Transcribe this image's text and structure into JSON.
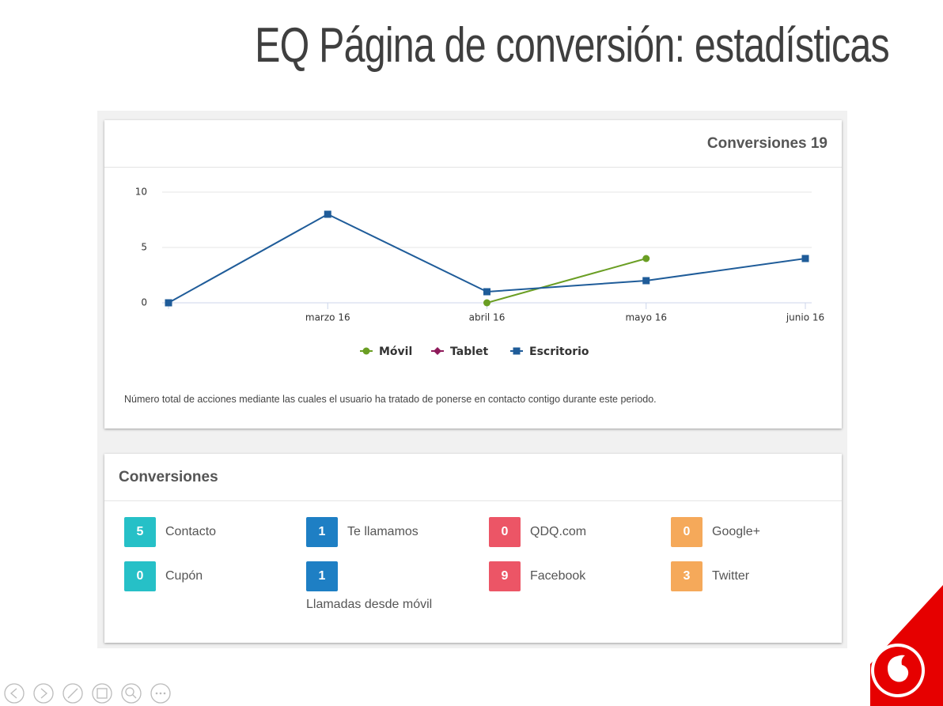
{
  "header": {
    "title": "EQ Página de conversión: estadísticas"
  },
  "chart_panel": {
    "heading": "Conversiones 19",
    "footnote": "Número total de acciones mediante las cuales el usuario ha tratado de ponerse en contacto contigo durante este periodo."
  },
  "chart_data": {
    "type": "line",
    "categories": [
      null,
      "marzo 16",
      "abril 16",
      "mayo 16",
      "junio 16"
    ],
    "series": [
      {
        "name": "Móvil",
        "color": "#6a9e23",
        "marker": "circle",
        "values": [
          null,
          null,
          0,
          4,
          null
        ]
      },
      {
        "name": "Tablet",
        "color": "#8e1a5a",
        "marker": "diamond",
        "values": [
          null,
          null,
          null,
          null,
          null
        ]
      },
      {
        "name": "Escritorio",
        "color": "#1f5c99",
        "marker": "square",
        "values": [
          0,
          8,
          1,
          2,
          4
        ]
      }
    ],
    "ylim": [
      0,
      10
    ],
    "yticks": [
      0,
      5,
      10
    ],
    "grid": true,
    "legend": "bottom"
  },
  "conversions_panel": {
    "heading": "Conversiones",
    "items": [
      {
        "value": 5,
        "label": "Contacto",
        "color": "#26c0c7"
      },
      {
        "value": 1,
        "label": "Te llamamos",
        "color": "#1e7fc4"
      },
      {
        "value": 0,
        "label": "QDQ.com",
        "color": "#ec5566"
      },
      {
        "value": 0,
        "label": "Google+",
        "color": "#f5a95a"
      },
      {
        "value": 0,
        "label": "Cupón",
        "color": "#26c0c7"
      },
      {
        "value": 1,
        "label": "Llamadas desde móvil",
        "color": "#1e7fc4"
      },
      {
        "value": 9,
        "label": "Facebook",
        "color": "#ec5566"
      },
      {
        "value": 3,
        "label": "Twitter",
        "color": "#f5a95a"
      }
    ]
  }
}
